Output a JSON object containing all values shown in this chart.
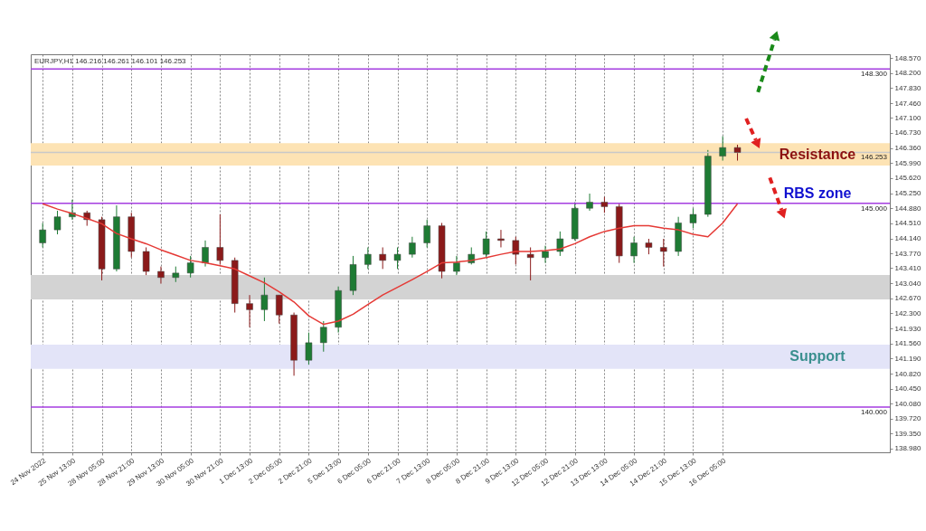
{
  "chart_data": {
    "type": "candlestick",
    "categories": [
      "24 Nov 2022",
      null,
      "25 Nov 13:00",
      null,
      "28 Nov 05:00",
      null,
      "28 Nov 21:00",
      null,
      "29 Nov 13:00",
      null,
      "30 Nov 05:00",
      null,
      "30 Nov 21:00",
      null,
      "1 Dec 13:00",
      null,
      "2 Dec 05:00",
      null,
      "2 Dec 21:00",
      null,
      "5 Dec 13:00",
      null,
      "6 Dec 05:00",
      null,
      "6 Dec 21:00",
      null,
      "7 Dec 13:00",
      null,
      "8 Dec 05:00",
      null,
      "8 Dec 21:00",
      null,
      "9 Dec 13:00",
      null,
      "12 Dec 05:00",
      null,
      "12 Dec 21:00",
      null,
      "13 Dec 13:00",
      null,
      "14 Dec 05:00",
      null,
      "14 Dec 21:00",
      null,
      "15 Dec 13:00",
      null,
      "16 Dec 05:00",
      null
    ],
    "ohlc": [
      [
        144.03,
        144.52,
        143.92,
        144.35
      ],
      [
        144.35,
        144.82,
        144.24,
        144.67
      ],
      [
        144.67,
        145.09,
        144.6,
        144.77
      ],
      [
        144.77,
        144.82,
        144.45,
        144.6
      ],
      [
        144.6,
        144.67,
        143.11,
        143.39
      ],
      [
        143.39,
        144.95,
        143.33,
        144.67
      ],
      [
        144.67,
        144.77,
        143.67,
        143.82
      ],
      [
        143.82,
        143.92,
        143.24,
        143.33
      ],
      [
        143.33,
        143.45,
        143.03,
        143.18
      ],
      [
        143.18,
        143.45,
        143.07,
        143.29
      ],
      [
        143.29,
        143.71,
        143.18,
        143.54
      ],
      [
        143.54,
        144.09,
        143.45,
        143.92
      ],
      [
        143.92,
        144.73,
        143.5,
        143.6
      ],
      [
        143.6,
        143.67,
        142.32,
        142.54
      ],
      [
        142.54,
        142.75,
        141.96,
        142.39
      ],
      [
        142.39,
        143.18,
        142.11,
        142.75
      ],
      [
        142.75,
        142.75,
        142.05,
        142.26
      ],
      [
        142.26,
        142.32,
        140.77,
        141.15
      ],
      [
        141.15,
        141.83,
        141.04,
        141.58
      ],
      [
        141.58,
        142.11,
        141.36,
        141.96
      ],
      [
        141.96,
        142.96,
        141.83,
        142.86
      ],
      [
        142.86,
        143.71,
        142.75,
        143.5
      ],
      [
        143.5,
        143.92,
        143.39,
        143.75
      ],
      [
        143.75,
        143.92,
        143.39,
        143.6
      ],
      [
        143.6,
        143.92,
        143.39,
        143.75
      ],
      [
        143.75,
        144.18,
        143.67,
        144.03
      ],
      [
        144.03,
        144.6,
        143.92,
        144.45
      ],
      [
        144.45,
        144.52,
        143.16,
        143.33
      ],
      [
        143.33,
        143.71,
        143.24,
        143.54
      ],
      [
        143.54,
        143.92,
        143.5,
        143.75
      ],
      [
        143.75,
        144.31,
        143.67,
        144.13
      ],
      [
        144.13,
        144.35,
        143.92,
        144.09
      ],
      [
        144.09,
        144.18,
        143.5,
        143.75
      ],
      [
        143.75,
        143.92,
        143.11,
        143.67
      ],
      [
        143.67,
        143.96,
        143.54,
        143.82
      ],
      [
        143.82,
        144.31,
        143.71,
        144.13
      ],
      [
        144.13,
        145.03,
        144.09,
        144.88
      ],
      [
        144.88,
        145.24,
        144.82,
        145.03
      ],
      [
        145.03,
        145.16,
        144.77,
        144.92
      ],
      [
        144.92,
        144.99,
        143.54,
        143.71
      ],
      [
        143.71,
        144.18,
        143.54,
        144.03
      ],
      [
        144.03,
        144.13,
        143.75,
        143.92
      ],
      [
        143.92,
        144.13,
        143.45,
        143.82
      ],
      [
        143.82,
        144.67,
        143.71,
        144.52
      ],
      [
        144.52,
        144.88,
        144.39,
        144.73
      ],
      [
        144.73,
        146.31,
        144.67,
        146.16
      ],
      [
        146.16,
        146.65,
        146.05,
        146.37
      ],
      [
        146.37,
        146.44,
        146.05,
        146.25
      ]
    ],
    "colors": [
      "#1e7b34",
      "#1e7b34",
      "#1e7b34",
      "#8b1a1a",
      "#8b1a1a",
      "#1e7b34",
      "#8b1a1a",
      "#8b1a1a",
      "#8b1a1a",
      "#1e7b34",
      "#1e7b34",
      "#1e7b34",
      "#8b1a1a",
      "#8b1a1a",
      "#8b1a1a",
      "#1e7b34",
      "#8b1a1a",
      "#8b1a1a",
      "#1e7b34",
      "#1e7b34",
      "#1e7b34",
      "#1e7b34",
      "#1e7b34",
      "#8b1a1a",
      "#1e7b34",
      "#1e7b34",
      "#1e7b34",
      "#8b1a1a",
      "#1e7b34",
      "#1e7b34",
      "#1e7b34",
      "#8b1a1a",
      "#8b1a1a",
      "#8b1a1a",
      "#1e7b34",
      "#1e7b34",
      "#1e7b34",
      "#1e7b34",
      "#8b1a1a",
      "#8b1a1a",
      "#1e7b34",
      "#8b1a1a",
      "#8b1a1a",
      "#1e7b34",
      "#1e7b34",
      "#1e7b34",
      "#1e7b34",
      "#8b1a1a"
    ],
    "series": [
      {
        "type": "line",
        "color": "#e53935",
        "values": [
          144.99,
          144.86,
          144.75,
          144.63,
          144.5,
          144.26,
          144.13,
          144.01,
          143.86,
          143.73,
          143.6,
          143.54,
          143.47,
          143.39,
          143.22,
          143.05,
          142.83,
          142.58,
          142.24,
          142.03,
          142.11,
          142.28,
          142.52,
          142.75,
          142.94,
          143.13,
          143.33,
          143.54,
          143.56,
          143.6,
          143.67,
          143.75,
          143.82,
          143.82,
          143.84,
          143.88,
          144.01,
          144.18,
          144.31,
          144.39,
          144.45,
          144.45,
          144.39,
          144.35,
          144.24,
          144.18,
          144.52,
          144.99
        ]
      }
    ],
    "ylim": [
      138.89,
      148.66
    ],
    "yticks": [
      {
        "value": 138.98,
        "label": "138.980"
      },
      {
        "value": 139.35,
        "label": "139.350"
      },
      {
        "value": 139.72,
        "label": "139.720"
      },
      {
        "value": 140.08,
        "label": "140.080"
      },
      {
        "value": 140.45,
        "label": "140.450"
      },
      {
        "value": 140.82,
        "label": "140.820"
      },
      {
        "value": 141.19,
        "label": "141.190"
      },
      {
        "value": 141.56,
        "label": "141.560"
      },
      {
        "value": 141.93,
        "label": "141.930"
      },
      {
        "value": 142.3,
        "label": "142.300"
      },
      {
        "value": 142.67,
        "label": "142.670"
      },
      {
        "value": 143.04,
        "label": "143.040"
      },
      {
        "value": 143.41,
        "label": "143.410"
      },
      {
        "value": 143.77,
        "label": "143.770"
      },
      {
        "value": 144.14,
        "label": "144.140"
      },
      {
        "value": 144.51,
        "label": "144.510"
      },
      {
        "value": 144.88,
        "label": "144.880"
      },
      {
        "value": 145.25,
        "label": "145.250"
      },
      {
        "value": 145.62,
        "label": "145.620"
      },
      {
        "value": 145.99,
        "label": "145.990"
      },
      {
        "value": 146.36,
        "label": "146.360"
      },
      {
        "value": 146.73,
        "label": "146.730"
      },
      {
        "value": 147.1,
        "label": "147.100"
      },
      {
        "value": 147.46,
        "label": "147.460"
      },
      {
        "value": 147.83,
        "label": "147.830"
      },
      {
        "value": 148.2,
        "label": "148.200"
      },
      {
        "value": 148.57,
        "label": "148.570"
      }
    ],
    "grid": "x",
    "bands": [
      {
        "axis": "y",
        "from": 145.93,
        "to": 146.48,
        "label": "Resistance",
        "color": "#fde3b4"
      },
      {
        "axis": "y",
        "from": 142.64,
        "to": 143.24,
        "color": "#d3d3d3"
      },
      {
        "axis": "y",
        "from": 140.94,
        "to": 141.53,
        "label": "Support",
        "color": "#e3e4f8"
      }
    ],
    "ref_lines": [
      {
        "axis": "y",
        "value": 148.3,
        "label": "148.300",
        "color": "#a43de0"
      },
      {
        "axis": "y",
        "value": 145.0,
        "label": "145.000",
        "color": "#a43de0"
      },
      {
        "axis": "y",
        "value": 140.0,
        "label": "140.000",
        "color": "#a43de0"
      },
      {
        "axis": "y",
        "value": 146.253,
        "label": "146.253",
        "color": "#c8c8c8"
      }
    ],
    "annotations": [
      "EURJPY,H1  146.216 146.261 146.101 146.253",
      {
        "text": "RBS zone",
        "y": 145.0
      }
    ]
  }
}
